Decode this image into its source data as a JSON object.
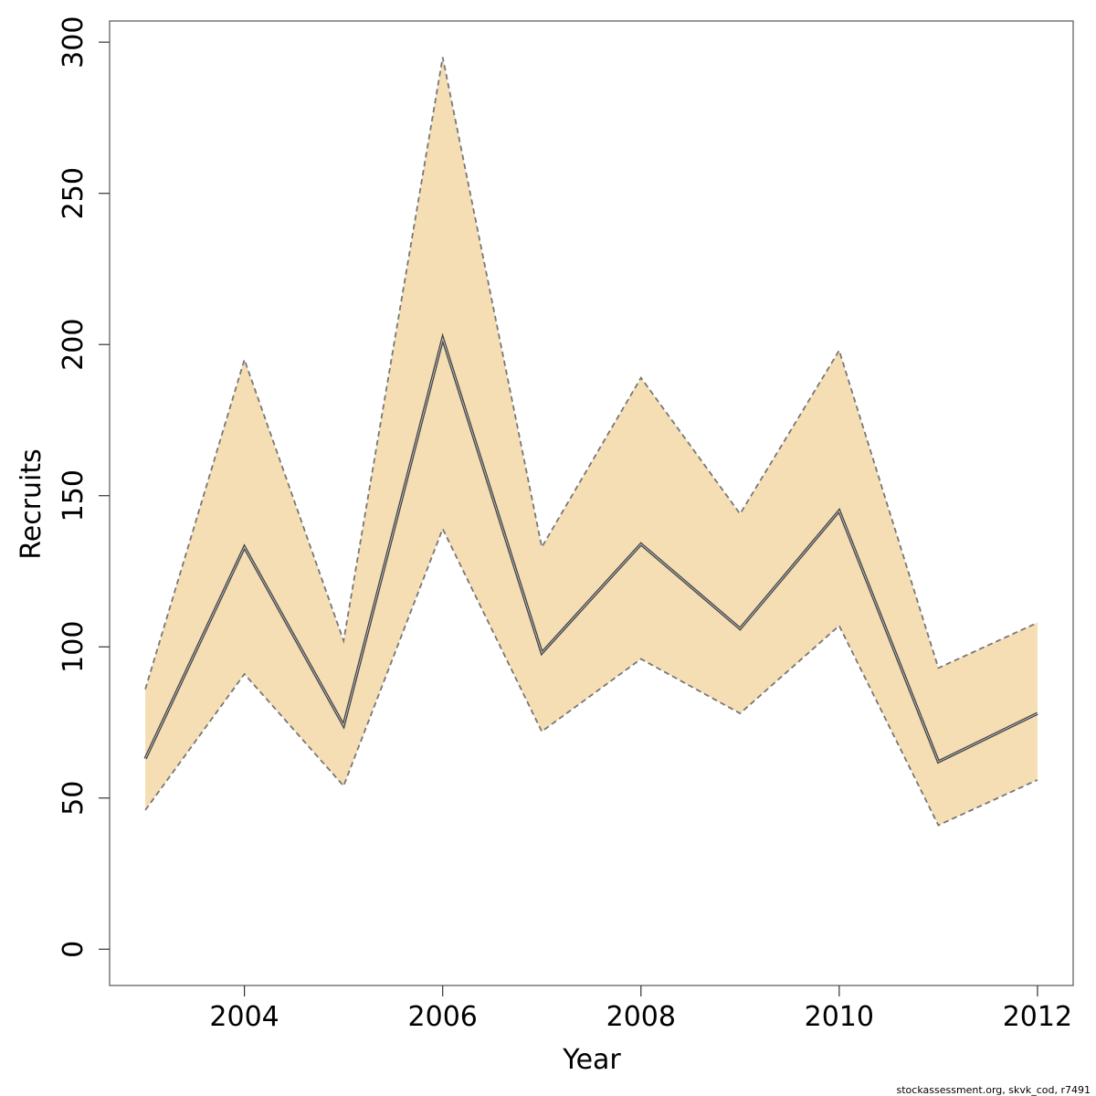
{
  "chart_data": {
    "type": "line",
    "title": "",
    "xlabel": "Year",
    "ylabel": "Recruits",
    "x": [
      2003,
      2004,
      2005,
      2006,
      2007,
      2008,
      2009,
      2010,
      2011,
      2012
    ],
    "xlim": [
      2002.64,
      2012.36
    ],
    "ylim": [
      -12,
      307
    ],
    "x_ticks": [
      2004,
      2006,
      2008,
      2010,
      2012
    ],
    "y_ticks": [
      0,
      50,
      100,
      150,
      200,
      250,
      300
    ],
    "grid": false,
    "legend": "none",
    "series": [
      {
        "kind": "line",
        "values": [
          63,
          133,
          74,
          202,
          98,
          134,
          106,
          145,
          62,
          78
        ],
        "color": "#555555"
      },
      {
        "kind": "band-upper",
        "values": [
          86,
          195,
          102,
          295,
          133,
          189,
          144,
          198,
          93,
          108
        ],
        "color": "#777777"
      },
      {
        "kind": "band-lower",
        "values": [
          46,
          91,
          54,
          139,
          72,
          96,
          78,
          107,
          41,
          56
        ],
        "color": "#777777"
      }
    ],
    "band_fill": "#F5DEB3"
  },
  "footer": {
    "note": "stockassessment.org, skvk_cod, r7491"
  }
}
